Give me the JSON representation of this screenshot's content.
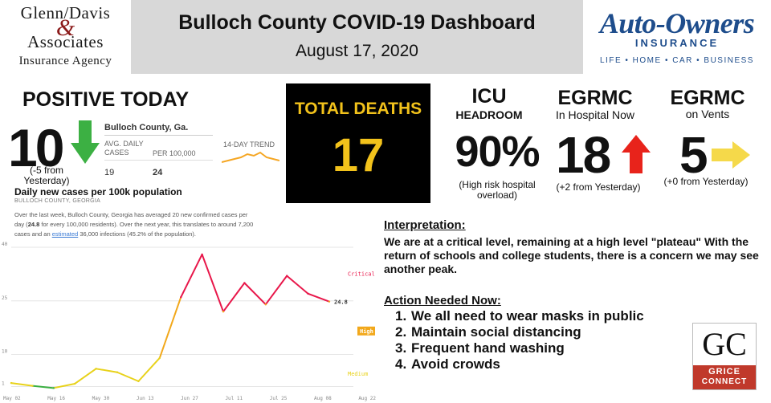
{
  "header": {
    "left_logo": {
      "line1": "Glenn/Davis",
      "amp": "&",
      "line2": "Associates",
      "line3": "Insurance Agency"
    },
    "title": "Bulloch County COVID-19 Dashboard",
    "date": "August 17, 2020",
    "right_logo": {
      "name": "Auto-Owners",
      "line2": "INSURANCE",
      "tagline": "LIFE • HOME • CAR • BUSINESS"
    }
  },
  "positive_today": {
    "title": "POSITIVE TODAY",
    "value": "10",
    "delta": "(-5 from Yesterday)",
    "arrow_color": "#3cb043"
  },
  "nyt_widget": {
    "county": "Bulloch County, Ga.",
    "col1_header": "AVG. DAILY CASES",
    "col2_header": "PER 100,000",
    "col1_value": "19",
    "col2_value": "24",
    "trend_header": "14-DAY TREND",
    "trend_color": "#f5a623"
  },
  "chart_section": {
    "title": "Daily new cases per 100k population",
    "subtitle": "BULLOCH COUNTY, GEORGIA",
    "desc_part1": "Over the last week, Bulloch County, Georgia has averaged 20 new confirmed cases per day (",
    "desc_bold": "24.8",
    "desc_part2": " for every 100,000 residents). Over the next year, this translates to around 7,200 cases and an ",
    "desc_link": "estimated",
    "desc_part3": " 36,000 infections (45.2% of the population)."
  },
  "chart_data": {
    "type": "line",
    "x": [
      "May 02",
      "May 09",
      "May 16",
      "May 23",
      "May 30",
      "Jun 06",
      "Jun 13",
      "Jun 20",
      "Jun 27",
      "Jul 04",
      "Jul 11",
      "Jul 18",
      "Jul 25",
      "Aug 01",
      "Aug 08",
      "Aug 15"
    ],
    "series": [
      {
        "values": [
          2.0,
          1.2,
          0.6,
          1.8,
          6.0,
          5.0,
          2.5,
          9.0,
          26.0,
          38.0,
          22.0,
          30.0,
          24.0,
          32.0,
          27.0,
          24.8
        ]
      }
    ],
    "x_ticks": [
      "May 02",
      "May 16",
      "May 30",
      "Jun 13",
      "Jun 27",
      "Jul 11",
      "Jul 25",
      "Aug 08",
      "Aug 22"
    ],
    "y_ticks": [
      "1",
      "10",
      "25",
      "40"
    ],
    "ylim": [
      0,
      40
    ],
    "zone_labels": [
      "Critical",
      "High",
      "Medium"
    ],
    "last_value_label": "24.8",
    "colors": {
      "critical": "#e8174a",
      "high": "#f2a81b",
      "medium": "#e8d21b",
      "low": "#3cb043"
    }
  },
  "total_deaths": {
    "label": "TOTAL DEATHS",
    "value": "17",
    "bg": "#000000",
    "fg": "#f2c21b"
  },
  "icu": {
    "title": "ICU",
    "subtitle": "HEADROOM",
    "value": "90%",
    "note": "(High risk hospital overload)"
  },
  "egrmc_hospital": {
    "title": "EGRMC",
    "subtitle": "In Hospital Now",
    "value": "18",
    "note": "(+2 from Yesterday)",
    "arrow_color": "#e8231b"
  },
  "egrmc_vents": {
    "title": "EGRMC",
    "subtitle": "on Vents",
    "value": "5",
    "note": "(+0 from Yesterday)",
    "arrow_color": "#f5d94a"
  },
  "interpretation": {
    "heading": "Interpretation:",
    "text": "We are at a critical level, remaining at a high level \"plateau\" With the return of schools and college students, there is a concern we may see another peak."
  },
  "action": {
    "heading": "Action Needed Now:",
    "items": [
      {
        "num": "1.",
        "text": "We all need to wear masks in public"
      },
      {
        "num": "2.",
        "text": "Maintain social distancing"
      },
      {
        "num": "3.",
        "text": "Frequent hand washing"
      },
      {
        "num": "4.",
        "text": "Avoid crowds"
      }
    ]
  },
  "grice_logo": {
    "letters": "GC",
    "line1": "GRICE",
    "line2": "CONNECT"
  }
}
